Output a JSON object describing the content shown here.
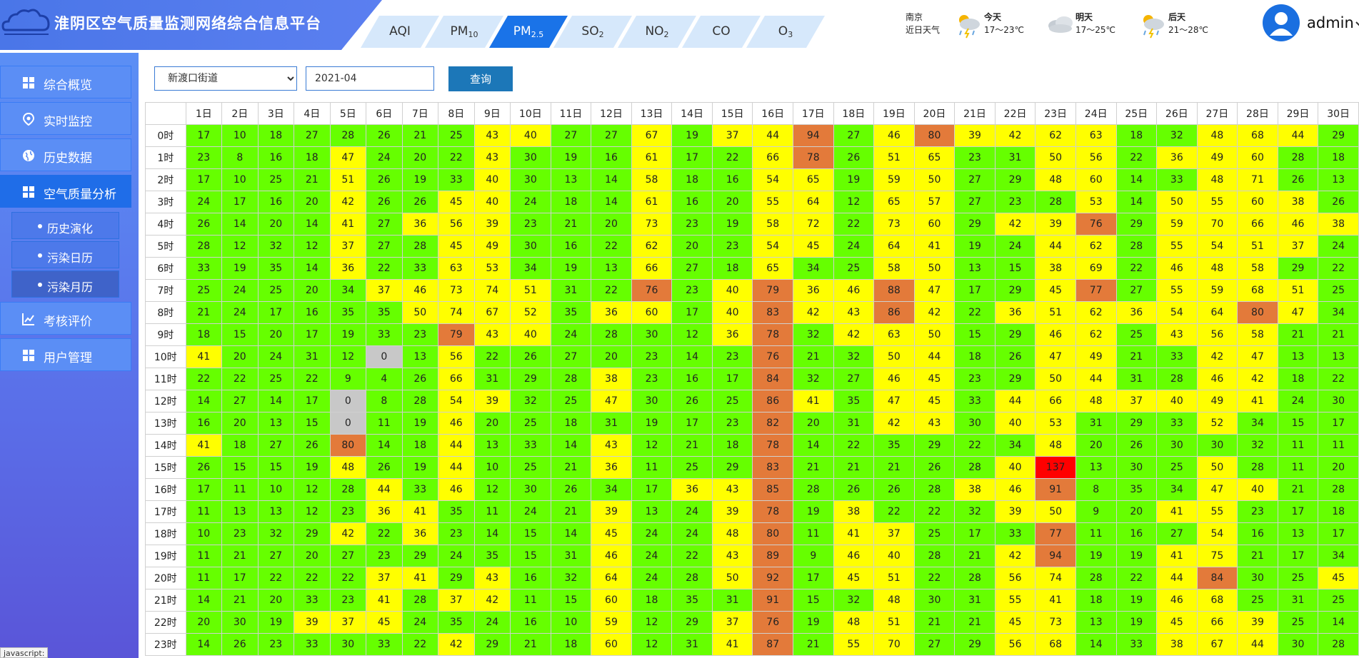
{
  "header": {
    "title": "淮阴区空气质量监测网络综合信息平台",
    "tabs": [
      {
        "label": "AQI",
        "sub": ""
      },
      {
        "label": "PM",
        "sub": "10"
      },
      {
        "label": "PM",
        "sub": "2.5"
      },
      {
        "label": "SO",
        "sub": "2"
      },
      {
        "label": "NO",
        "sub": "2"
      },
      {
        "label": "CO",
        "sub": ""
      },
      {
        "label": "O",
        "sub": "3"
      }
    ],
    "active_tab": 2
  },
  "weather": {
    "city": "南京",
    "subtitle": "近日天气",
    "days": [
      {
        "label": "今天",
        "range": "17～23℃",
        "icon": "thunder-rain-icon"
      },
      {
        "label": "明天",
        "range": "17～25℃",
        "icon": "cloudy-icon"
      },
      {
        "label": "后天",
        "range": "21～28℃",
        "icon": "thunder-rain-icon"
      }
    ]
  },
  "user": {
    "name": "admin"
  },
  "sidebar": {
    "items": [
      {
        "label": "综合概览",
        "icon": "grid-icon",
        "name": "sidebar-item-overview"
      },
      {
        "label": "实时监控",
        "icon": "location-pin-icon",
        "name": "sidebar-item-realtime"
      },
      {
        "label": "历史数据",
        "icon": "globe-icon",
        "name": "sidebar-item-history"
      },
      {
        "label": "空气质量分析",
        "icon": "grid-icon",
        "name": "sidebar-item-analysis"
      }
    ],
    "subitems": [
      {
        "label": "历史演化",
        "name": "subitem-history-evolution"
      },
      {
        "label": "污染日历",
        "name": "subitem-pollution-daily"
      },
      {
        "label": "污染月历",
        "name": "subitem-pollution-monthly"
      }
    ],
    "items_after": [
      {
        "label": "考核评价",
        "icon": "chart-icon",
        "name": "sidebar-item-assessment"
      },
      {
        "label": "用户管理",
        "icon": "grid-icon",
        "name": "sidebar-item-users"
      }
    ]
  },
  "filter": {
    "station": "新渡口街道",
    "month": "2021-04",
    "query_label": "查询"
  },
  "colors": {
    "gray": "#c8c8c8",
    "green": "#66ff00",
    "yellow": "#ffff00",
    "orange": "#e37a3a",
    "red": "#ff0000"
  },
  "table": {
    "days": [
      "1日",
      "2日",
      "3日",
      "4日",
      "5日",
      "6日",
      "7日",
      "8日",
      "9日",
      "10日",
      "11日",
      "12日",
      "13日",
      "14日",
      "15日",
      "16日",
      "17日",
      "18日",
      "19日",
      "20日",
      "21日",
      "22日",
      "23日",
      "24日",
      "25日",
      "26日",
      "27日",
      "28日",
      "29日",
      "30日"
    ],
    "hours": [
      "0时",
      "1时",
      "2时",
      "3时",
      "4时",
      "5时",
      "6时",
      "7时",
      "8时",
      "9时",
      "10时",
      "11时",
      "12时",
      "13时",
      "14时",
      "15时",
      "16时",
      "17时",
      "18时",
      "19时",
      "20时",
      "21时",
      "22时",
      "23时"
    ],
    "values": [
      [
        17,
        10,
        18,
        27,
        28,
        26,
        21,
        25,
        43,
        40,
        27,
        27,
        67,
        19,
        37,
        44,
        94,
        27,
        46,
        80,
        39,
        42,
        62,
        63,
        18,
        32,
        48,
        68,
        44,
        29
      ],
      [
        23,
        8,
        16,
        18,
        47,
        24,
        20,
        22,
        43,
        30,
        19,
        16,
        61,
        17,
        22,
        66,
        78,
        26,
        51,
        65,
        23,
        31,
        50,
        56,
        22,
        36,
        49,
        60,
        28,
        18
      ],
      [
        17,
        10,
        25,
        21,
        51,
        26,
        19,
        33,
        40,
        30,
        13,
        14,
        58,
        18,
        16,
        54,
        65,
        19,
        59,
        50,
        27,
        29,
        48,
        60,
        14,
        33,
        48,
        71,
        26,
        13
      ],
      [
        24,
        17,
        16,
        20,
        42,
        26,
        26,
        45,
        40,
        24,
        18,
        14,
        61,
        16,
        20,
        55,
        64,
        12,
        65,
        57,
        27,
        23,
        28,
        53,
        14,
        50,
        55,
        60,
        38,
        26
      ],
      [
        26,
        14,
        20,
        14,
        41,
        27,
        36,
        56,
        39,
        23,
        21,
        20,
        73,
        23,
        19,
        58,
        72,
        22,
        73,
        60,
        29,
        42,
        39,
        76,
        29,
        59,
        70,
        66,
        46,
        38
      ],
      [
        28,
        12,
        32,
        12,
        37,
        27,
        28,
        45,
        49,
        30,
        16,
        22,
        62,
        20,
        23,
        54,
        45,
        24,
        64,
        41,
        19,
        24,
        44,
        62,
        28,
        55,
        54,
        51,
        37,
        24
      ],
      [
        33,
        19,
        35,
        14,
        36,
        22,
        33,
        63,
        53,
        34,
        19,
        13,
        66,
        27,
        18,
        65,
        34,
        25,
        58,
        50,
        13,
        15,
        38,
        69,
        22,
        46,
        48,
        58,
        29,
        22
      ],
      [
        25,
        24,
        25,
        20,
        34,
        37,
        46,
        73,
        74,
        51,
        31,
        22,
        76,
        23,
        40,
        79,
        36,
        46,
        88,
        47,
        17,
        29,
        45,
        77,
        27,
        55,
        59,
        68,
        51,
        25
      ],
      [
        21,
        24,
        17,
        16,
        35,
        35,
        50,
        74,
        67,
        52,
        35,
        36,
        60,
        17,
        40,
        83,
        42,
        43,
        86,
        42,
        22,
        36,
        51,
        62,
        36,
        54,
        64,
        80,
        47,
        34
      ],
      [
        18,
        15,
        20,
        17,
        19,
        33,
        23,
        79,
        43,
        40,
        24,
        28,
        30,
        12,
        36,
        78,
        32,
        42,
        63,
        50,
        15,
        29,
        46,
        62,
        25,
        43,
        56,
        58,
        21,
        21
      ],
      [
        41,
        20,
        24,
        31,
        12,
        0,
        13,
        56,
        22,
        26,
        27,
        20,
        23,
        14,
        23,
        76,
        21,
        32,
        50,
        44,
        18,
        26,
        47,
        49,
        21,
        33,
        42,
        47,
        13,
        13
      ],
      [
        22,
        22,
        25,
        22,
        9,
        4,
        26,
        66,
        31,
        29,
        28,
        38,
        23,
        16,
        17,
        84,
        32,
        27,
        46,
        45,
        23,
        29,
        50,
        44,
        31,
        28,
        46,
        42,
        18,
        22
      ],
      [
        14,
        27,
        14,
        17,
        0,
        8,
        28,
        54,
        39,
        32,
        25,
        47,
        30,
        26,
        25,
        86,
        41,
        35,
        47,
        45,
        33,
        44,
        66,
        48,
        37,
        40,
        49,
        41,
        24,
        30
      ],
      [
        16,
        20,
        13,
        15,
        0,
        11,
        19,
        46,
        20,
        25,
        18,
        31,
        19,
        17,
        23,
        82,
        20,
        31,
        42,
        43,
        30,
        40,
        53,
        31,
        29,
        33,
        52,
        34,
        15,
        17
      ],
      [
        41,
        18,
        27,
        26,
        80,
        14,
        18,
        44,
        13,
        33,
        14,
        43,
        12,
        21,
        18,
        78,
        14,
        22,
        35,
        29,
        22,
        34,
        48,
        20,
        26,
        30,
        30,
        32,
        11,
        11
      ],
      [
        26,
        15,
        15,
        19,
        48,
        26,
        19,
        44,
        10,
        25,
        21,
        36,
        11,
        25,
        29,
        83,
        21,
        21,
        21,
        26,
        28,
        40,
        137,
        13,
        30,
        25,
        50,
        28,
        11,
        20
      ],
      [
        17,
        11,
        10,
        12,
        28,
        44,
        33,
        46,
        12,
        30,
        26,
        34,
        17,
        36,
        43,
        85,
        28,
        26,
        26,
        28,
        38,
        46,
        91,
        8,
        35,
        34,
        47,
        40,
        21,
        28
      ],
      [
        11,
        13,
        13,
        12,
        23,
        36,
        41,
        35,
        11,
        24,
        21,
        39,
        13,
        24,
        39,
        78,
        19,
        38,
        22,
        22,
        32,
        39,
        50,
        9,
        20,
        41,
        55,
        23,
        17,
        18
      ],
      [
        10,
        23,
        32,
        29,
        42,
        22,
        36,
        23,
        14,
        15,
        14,
        45,
        24,
        24,
        48,
        80,
        11,
        41,
        37,
        25,
        17,
        33,
        77,
        11,
        16,
        27,
        54,
        16,
        13,
        17
      ],
      [
        11,
        21,
        27,
        20,
        27,
        23,
        29,
        24,
        35,
        15,
        31,
        46,
        24,
        22,
        43,
        89,
        9,
        46,
        40,
        28,
        21,
        42,
        94,
        19,
        19,
        41,
        75,
        21,
        17,
        34
      ],
      [
        11,
        17,
        22,
        22,
        22,
        37,
        41,
        29,
        43,
        16,
        32,
        64,
        24,
        28,
        50,
        92,
        17,
        45,
        51,
        22,
        28,
        56,
        74,
        28,
        22,
        44,
        84,
        30,
        25,
        45
      ],
      [
        14,
        21,
        20,
        33,
        23,
        41,
        28,
        37,
        42,
        11,
        15,
        60,
        18,
        35,
        31,
        91,
        15,
        32,
        48,
        30,
        31,
        55,
        41,
        18,
        19,
        46,
        68,
        25,
        31,
        25
      ],
      [
        20,
        30,
        19,
        39,
        37,
        45,
        24,
        35,
        24,
        16,
        10,
        59,
        12,
        29,
        37,
        76,
        19,
        48,
        51,
        21,
        21,
        45,
        73,
        13,
        19,
        45,
        66,
        39,
        25,
        14
      ],
      [
        14,
        26,
        23,
        33,
        30,
        33,
        22,
        42,
        29,
        21,
        18,
        60,
        12,
        31,
        41,
        87,
        21,
        55,
        70,
        27,
        29,
        56,
        68,
        14,
        33,
        38,
        67,
        44,
        30,
        28
      ]
    ]
  },
  "status_tip": "javascript:"
}
